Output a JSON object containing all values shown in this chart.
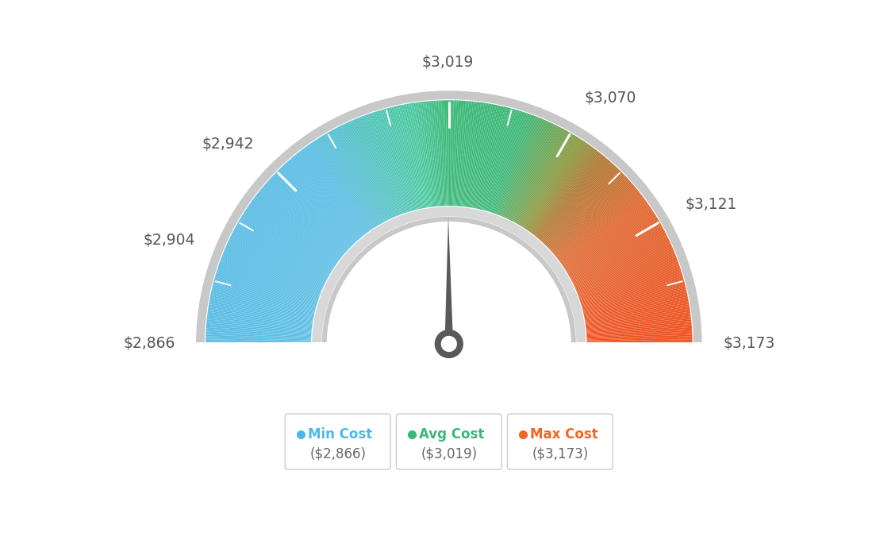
{
  "min_val": 2866,
  "max_val": 3173,
  "avg_val": 3019,
  "tick_labels": [
    "$2,866",
    "$2,904",
    "$2,942",
    "$3,019",
    "$3,070",
    "$3,121",
    "$3,173"
  ],
  "tick_values": [
    2866,
    2904,
    2942,
    3019,
    3070,
    3121,
    3173
  ],
  "legend_items": [
    {
      "label": "Min Cost",
      "value": "($2,866)",
      "color": "#4db8e8"
    },
    {
      "label": "Avg Cost",
      "value": "($3,019)",
      "color": "#3cb878"
    },
    {
      "label": "Max Cost",
      "value": "($3,173)",
      "color": "#f26522"
    }
  ],
  "background_color": "#ffffff",
  "needle_color": "#595959",
  "outer_ring_color": "#c8c8c8",
  "inner_ring_color": "#d0d0d0",
  "gauge_color_stops": [
    [
      0.0,
      "#5bbde4"
    ],
    [
      0.3,
      "#5bbde4"
    ],
    [
      0.45,
      "#4bc9a0"
    ],
    [
      0.5,
      "#3cb878"
    ],
    [
      0.6,
      "#3cb878"
    ],
    [
      0.68,
      "#8a9a40"
    ],
    [
      0.72,
      "#b07830"
    ],
    [
      0.8,
      "#e06830"
    ],
    [
      1.0,
      "#f05020"
    ]
  ]
}
